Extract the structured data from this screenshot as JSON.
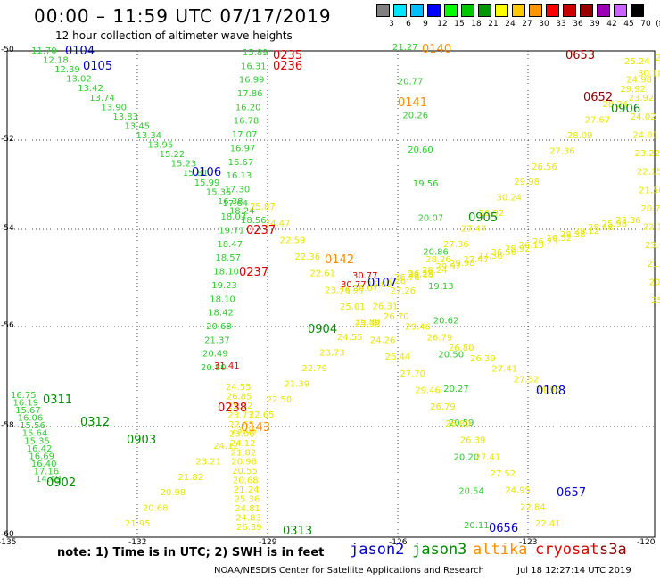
{
  "header": {
    "title": "00:00 – 11:59 UTC 07/17/2019",
    "subtitle": "12 hour collection of altimeter wave heights"
  },
  "colorbar": {
    "colors": [
      "#808080",
      "#00e5ff",
      "#00bfff",
      "#0000ff",
      "#00ff00",
      "#00c800",
      "#009600",
      "#ffff00",
      "#ffc800",
      "#ff9600",
      "#ff0000",
      "#c80000",
      "#960000",
      "#9b00b4",
      "#c864ff",
      "#000000"
    ],
    "ticks": [
      "3",
      "6",
      "9",
      "12",
      "15",
      "18",
      "21",
      "24",
      "27",
      "30",
      "33",
      "36",
      "39",
      "42",
      "45",
      "70"
    ],
    "unit": "(ft)"
  },
  "axes": {
    "lat_labels": [
      "-50",
      "-52",
      "-54",
      "-56",
      "-58",
      "-60"
    ],
    "lon_labels": [
      "-135",
      "-132",
      "-129",
      "-126",
      "-123",
      "-120"
    ]
  },
  "footer": {
    "note": "note:  1) Time is in UTC;  2) SWH is in feet",
    "legend": [
      {
        "label": "jason2",
        "color": "#0000cc"
      },
      {
        "label": "jason3",
        "color": "#008c00"
      },
      {
        "label": "altika",
        "color": "#ff8c00"
      },
      {
        "label": "cryosat",
        "color": "#dd0000"
      },
      {
        "label": "s3a",
        "color": "#8b0000"
      }
    ],
    "credit": "NOAA/NESDIS Center for Satellite Applications and Research",
    "timestamp": "Jul 18 12:27:14 UTC 2019"
  },
  "tracks": [
    {
      "name": "green-track-west",
      "color": "#2fcc2f",
      "values": [
        "16.75",
        "16.19",
        "15.67",
        "16.06",
        "15.56",
        "15.64",
        "15.35",
        "16.42",
        "16.69",
        "16.40",
        "17.16",
        "14.49"
      ],
      "times": [
        {
          "label": "0311",
          "color": "#008c00"
        },
        {
          "label": "0312",
          "color": "#008c00"
        },
        {
          "label": "0903",
          "color": "#008c00"
        },
        {
          "label": "0902",
          "color": "#008c00"
        }
      ]
    },
    {
      "name": "green-track-central",
      "color": "#2fcc2f",
      "values": [
        "15.89",
        "16.31",
        "16.99",
        "17.86",
        "16.20",
        "16.78",
        "17.07",
        "16.97",
        "16.67",
        "16.13",
        "17.30",
        "17.64",
        "18.03",
        "19.71",
        "18.47",
        "18.57",
        "18.10",
        "19.23",
        "18.10",
        "18.42",
        "20.68",
        "21.37",
        "20.49",
        "20.80"
      ],
      "times": []
    },
    {
      "name": "green-track-east",
      "color": "#2fcc2f",
      "values": [
        "21.27",
        "20.77",
        "20.26",
        "20.60",
        "19.56",
        "20.07",
        "20.86",
        "19.13",
        "20.62",
        "20.50",
        "20.27",
        "20.59",
        "20.20",
        "20.54",
        "20.11"
      ],
      "times": [
        {
          "label": "0904",
          "color": "#008c00"
        },
        {
          "label": "0905",
          "color": "#008c00"
        },
        {
          "label": "0906",
          "color": "#008c00"
        },
        {
          "label": "0313",
          "color": "#008c00"
        }
      ]
    },
    {
      "name": "yellow-track-southwest-northeast",
      "color": "#e8e800",
      "values": [
        "24.55",
        "26.85",
        "25.32",
        "23.73",
        "22.65",
        "23.06",
        "24.12",
        "21.82",
        "20.98",
        "20.55",
        "20.68",
        "21.24",
        "25.36",
        "24.81",
        "24.83",
        "26.39"
      ],
      "times": []
    },
    {
      "name": "yellow-track-diagonal",
      "color": "#e8e800",
      "values": [
        "25.27",
        "26.07",
        "26.69",
        "27.26",
        "26.76",
        "26.28",
        "28.24",
        "29.92",
        "29.98",
        "27.47",
        "27.36",
        "26.56",
        "28.92",
        "26.15",
        "26.23",
        "26.52",
        "28.38",
        "29.12",
        "28.48",
        "25.98",
        "23.36"
      ],
      "times": []
    },
    {
      "name": "yellow-track-east",
      "color": "#e8e800",
      "values": [
        "25.24",
        "24.98",
        "23.92",
        "24.02",
        "24.01",
        "23.22",
        "22.15",
        "21.50",
        "20.77",
        "22.17",
        "23.65",
        "21.65",
        "20.38",
        "25.14"
      ],
      "times": []
    },
    {
      "name": "yellow-track-descending",
      "color": "#e8e800",
      "values": [
        "26.70",
        "29.46",
        "26.79",
        "26.80",
        "26.39",
        "27.41",
        "27.52",
        "24.95"
      ],
      "times": []
    }
  ],
  "satellite_times": {
    "jason2": [
      "0104",
      "0105",
      "0106",
      "0107",
      "0108",
      "0656",
      "0657"
    ],
    "altika": [
      "0140",
      "0141",
      "0142",
      "0143"
    ],
    "cryosat": [
      "0235",
      "0236",
      "0237",
      "0238"
    ],
    "s3a": [
      "0652",
      "0653"
    ],
    "cryosat_values": [
      "31.41",
      "30.77",
      "30.77"
    ]
  }
}
